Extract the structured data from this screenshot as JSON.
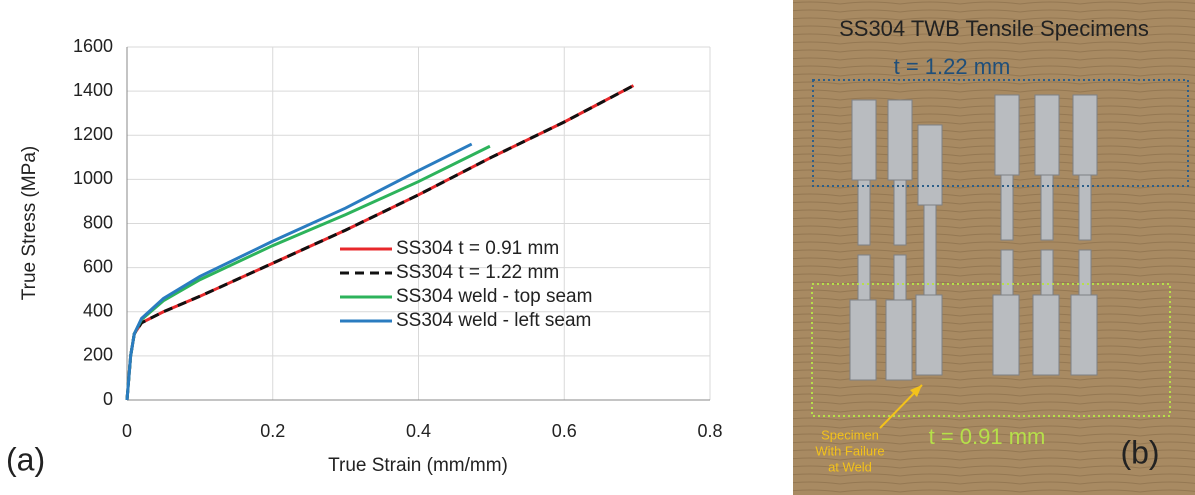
{
  "chart_data": {
    "type": "line",
    "x_label": "True Strain (mm/mm)",
    "y_label": "True Stress (MPa)",
    "xlim": [
      0,
      0.8
    ],
    "ylim": [
      0,
      1600
    ],
    "xticks": [
      0,
      0.2,
      0.4,
      0.6,
      0.8
    ],
    "yticks": [
      0,
      200,
      400,
      600,
      800,
      1000,
      1200,
      1400,
      1600
    ],
    "grid": true,
    "legend": "lower center",
    "series": [
      {
        "name": "SS304 t = 0.91 mm",
        "color": "#e8282b",
        "dashed": false,
        "x": [
          0,
          0.005,
          0.01,
          0.02,
          0.05,
          0.1,
          0.2,
          0.3,
          0.4,
          0.5,
          0.6,
          0.695
        ],
        "values": [
          0,
          200,
          300,
          350,
          400,
          470,
          620,
          770,
          930,
          1100,
          1260,
          1425
        ]
      },
      {
        "name": "SS304 t = 1.22 mm",
        "color": "#111111",
        "dashed": true,
        "x": [
          0,
          0.005,
          0.01,
          0.02,
          0.05,
          0.1,
          0.2,
          0.3,
          0.4,
          0.5,
          0.6,
          0.695
        ],
        "values": [
          0,
          200,
          300,
          350,
          400,
          470,
          620,
          770,
          930,
          1100,
          1260,
          1425
        ]
      },
      {
        "name": "SS304 weld - top seam",
        "color": "#2db35b",
        "dashed": false,
        "x": [
          0,
          0.005,
          0.01,
          0.02,
          0.05,
          0.1,
          0.2,
          0.3,
          0.4,
          0.498
        ],
        "values": [
          0,
          200,
          300,
          365,
          450,
          545,
          700,
          840,
          990,
          1150
        ]
      },
      {
        "name": "SS304 weld - left seam",
        "color": "#2a7cc0",
        "dashed": false,
        "x": [
          0,
          0.005,
          0.01,
          0.02,
          0.05,
          0.1,
          0.2,
          0.3,
          0.4,
          0.473
        ],
        "values": [
          0,
          200,
          300,
          370,
          460,
          560,
          720,
          870,
          1040,
          1160
        ]
      }
    ]
  },
  "panel_a": "(a)",
  "panel_b": "(b)",
  "photo": {
    "title": "SS304 TWB Tensile Specimens",
    "top_label": "t = 1.22 mm",
    "bottom_label": "t = 0.91 mm",
    "note": [
      "Specimen",
      "With Failure",
      "at Weld"
    ]
  }
}
